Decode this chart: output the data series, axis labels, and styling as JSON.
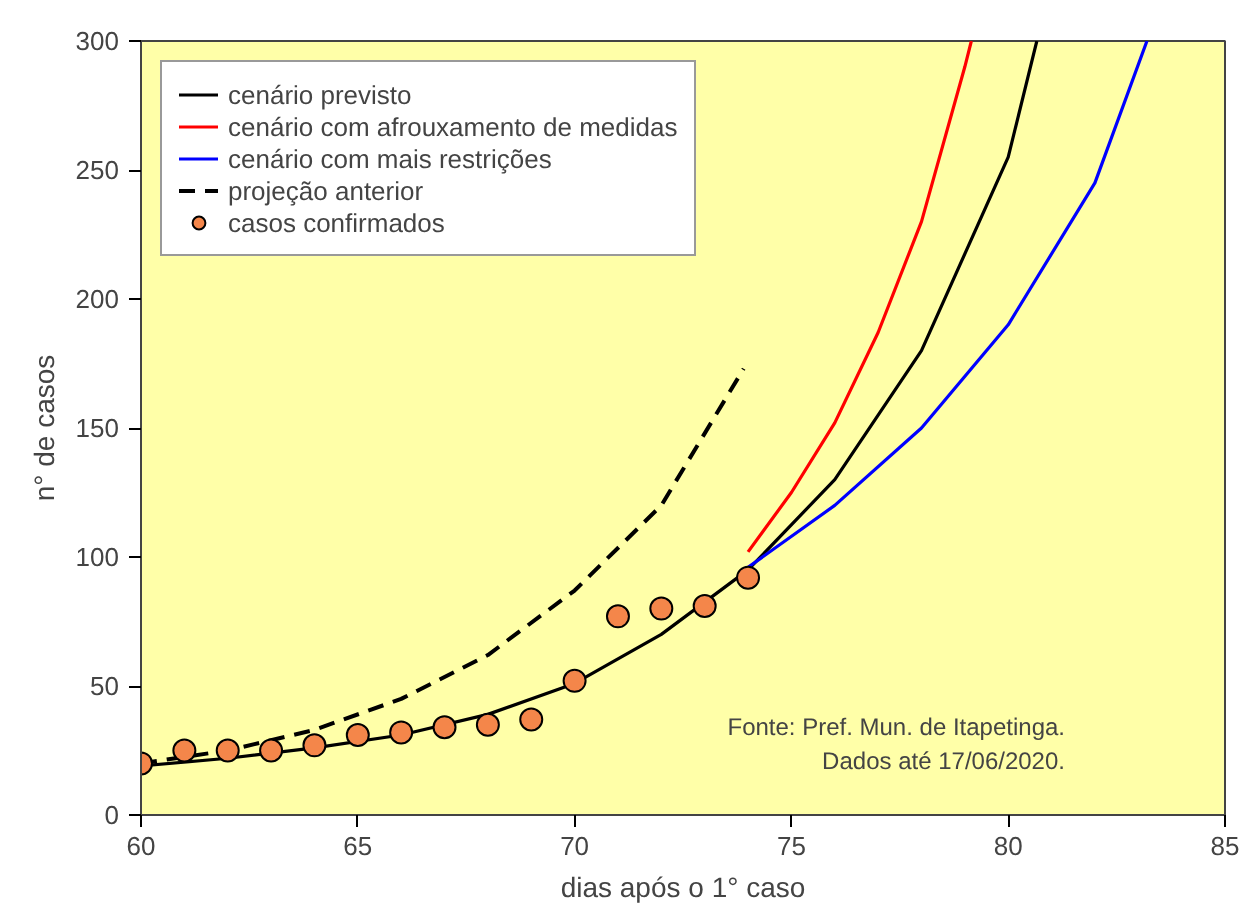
{
  "chart_data": {
    "type": "line",
    "xlabel": "dias após o 1° caso",
    "ylabel": "n° de casos",
    "xlim": [
      60,
      85
    ],
    "ylim": [
      0,
      300
    ],
    "xticks": [
      60,
      65,
      70,
      75,
      80,
      85
    ],
    "yticks": [
      0,
      50,
      100,
      150,
      200,
      250,
      300
    ],
    "grid": false,
    "legend": "top left",
    "series": [
      {
        "name": "cenário previsto",
        "color": "#000000",
        "line_style": "solid",
        "x": [
          60,
          62,
          64,
          66,
          68,
          70,
          72,
          74,
          76,
          78,
          80,
          80.66
        ],
        "values": [
          19,
          22,
          26,
          31,
          39,
          51,
          70,
          95,
          130,
          180,
          255,
          300
        ]
      },
      {
        "name": "cenário com afrouxamento de medidas",
        "color": "#ff0000",
        "line_style": "solid",
        "x": [
          74,
          75,
          76,
          77,
          78,
          79,
          79.15
        ],
        "values": [
          102,
          125,
          152,
          187,
          230,
          290,
          300
        ]
      },
      {
        "name": "cenário com mais restrições",
        "color": "#0000ff",
        "line_style": "solid",
        "x": [
          74,
          76,
          78,
          80,
          82,
          83.2
        ],
        "values": [
          96,
          120,
          150,
          190,
          245,
          300
        ]
      },
      {
        "name": "projeção anterior",
        "color": "#000000",
        "line_style": "dashed",
        "x": [
          60,
          62,
          64,
          66,
          68,
          70,
          72,
          73.9
        ],
        "values": [
          20,
          25,
          33,
          45,
          62,
          87,
          120,
          173
        ]
      },
      {
        "name": "casos confirmados",
        "type": "scatter",
        "marker": "circle",
        "color": "#f4864a",
        "x": [
          60,
          61,
          62,
          63,
          64,
          65,
          66,
          67,
          68,
          69,
          70,
          71,
          72,
          73,
          74
        ],
        "values": [
          20,
          25,
          25,
          25,
          27,
          31,
          32,
          34,
          35,
          37,
          52,
          77,
          80,
          81,
          92
        ]
      }
    ],
    "annotations": [
      "Fonte: Pref. Mun. de Itapetinga.\nDados até 17/06/2020."
    ]
  }
}
